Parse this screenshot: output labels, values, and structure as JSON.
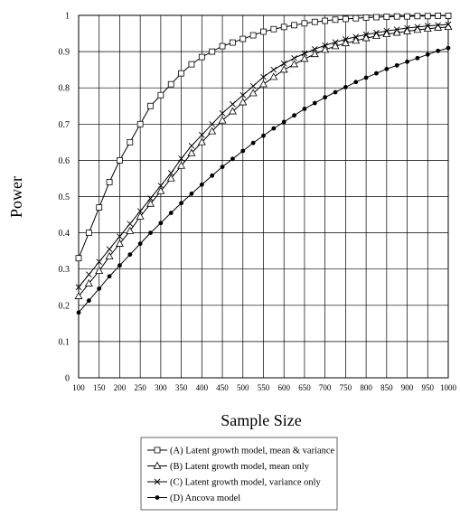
{
  "chart_data": {
    "type": "line",
    "title": "",
    "xlabel": "Sample Size",
    "ylabel": "Power",
    "xlim": [
      100,
      1000
    ],
    "ylim": [
      0,
      1
    ],
    "x_ticks": [
      100,
      150,
      200,
      250,
      300,
      350,
      400,
      450,
      500,
      550,
      600,
      650,
      700,
      750,
      800,
      850,
      900,
      950,
      1000
    ],
    "y_ticks": [
      0,
      0.1,
      0.2,
      0.3,
      0.4,
      0.5,
      0.6,
      0.7,
      0.8,
      0.9,
      1
    ],
    "grid": true,
    "legend_position": "bottom",
    "x": [
      100,
      125,
      150,
      175,
      200,
      225,
      250,
      275,
      300,
      325,
      350,
      375,
      400,
      425,
      450,
      475,
      500,
      525,
      550,
      575,
      600,
      625,
      650,
      675,
      700,
      725,
      750,
      775,
      800,
      825,
      850,
      875,
      900,
      925,
      950,
      975,
      1000
    ],
    "series": [
      {
        "name": "(A) Latent growth model, mean & variance",
        "marker": "square-open",
        "values": [
          0.33,
          0.4,
          0.47,
          0.54,
          0.6,
          0.65,
          0.7,
          0.75,
          0.78,
          0.81,
          0.84,
          0.865,
          0.885,
          0.9,
          0.915,
          0.925,
          0.935,
          0.945,
          0.955,
          0.962,
          0.968,
          0.973,
          0.978,
          0.982,
          0.985,
          0.988,
          0.99,
          0.992,
          0.994,
          0.995,
          0.996,
          0.997,
          0.997,
          0.998,
          0.998,
          0.999,
          0.999
        ]
      },
      {
        "name": "(B) Latent growth model, mean only",
        "marker": "triangle-open",
        "values": [
          0.225,
          0.26,
          0.295,
          0.335,
          0.37,
          0.405,
          0.445,
          0.48,
          0.515,
          0.55,
          0.585,
          0.62,
          0.65,
          0.68,
          0.71,
          0.735,
          0.76,
          0.785,
          0.81,
          0.83,
          0.85,
          0.865,
          0.88,
          0.893,
          0.905,
          0.915,
          0.923,
          0.93,
          0.937,
          0.943,
          0.948,
          0.952,
          0.956,
          0.96,
          0.963,
          0.966,
          0.968
        ]
      },
      {
        "name": "(C) Latent growth model, variance only",
        "marker": "cross",
        "values": [
          0.25,
          0.285,
          0.32,
          0.355,
          0.39,
          0.425,
          0.46,
          0.495,
          0.53,
          0.565,
          0.605,
          0.64,
          0.67,
          0.7,
          0.73,
          0.755,
          0.78,
          0.805,
          0.83,
          0.85,
          0.867,
          0.882,
          0.895,
          0.907,
          0.917,
          0.926,
          0.934,
          0.941,
          0.947,
          0.952,
          0.957,
          0.961,
          0.965,
          0.968,
          0.971,
          0.973,
          0.975
        ]
      },
      {
        "name": "(D) Ancova model",
        "marker": "dot-filled",
        "values": [
          0.18,
          0.213,
          0.246,
          0.28,
          0.31,
          0.34,
          0.37,
          0.4,
          0.427,
          0.455,
          0.482,
          0.508,
          0.533,
          0.558,
          0.582,
          0.604,
          0.626,
          0.648,
          0.668,
          0.688,
          0.706,
          0.724,
          0.742,
          0.758,
          0.774,
          0.788,
          0.802,
          0.816,
          0.828,
          0.84,
          0.852,
          0.862,
          0.872,
          0.882,
          0.892,
          0.902,
          0.91
        ]
      }
    ]
  },
  "colors": {
    "line": "#000000",
    "grid": "#000000",
    "background": "#ffffff"
  }
}
